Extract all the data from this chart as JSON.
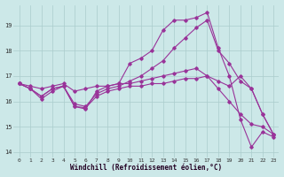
{
  "xlabel": "Windchill (Refroidissement éolien,°C)",
  "background_color": "#cce8e8",
  "grid_color": "#aacccc",
  "line_color": "#993399",
  "xlim": [
    -0.5,
    23.5
  ],
  "ylim": [
    13.8,
    19.8
  ],
  "xticks": [
    0,
    1,
    2,
    3,
    4,
    5,
    6,
    7,
    8,
    9,
    10,
    11,
    12,
    13,
    14,
    15,
    16,
    17,
    18,
    19,
    20,
    21,
    22,
    23
  ],
  "yticks": [
    14,
    15,
    16,
    17,
    18,
    19
  ],
  "line1_x": [
    0,
    1,
    2,
    3,
    4,
    5,
    6,
    7,
    8,
    9,
    10,
    11,
    12,
    13,
    14,
    15,
    16,
    17,
    18,
    19,
    20,
    21,
    22,
    23
  ],
  "line1_y": [
    16.7,
    16.5,
    16.2,
    16.5,
    16.6,
    15.8,
    15.7,
    16.4,
    16.6,
    16.7,
    17.5,
    17.7,
    18.0,
    18.8,
    19.2,
    19.2,
    19.3,
    19.5,
    18.1,
    17.0,
    15.3,
    14.2,
    14.8,
    14.6
  ],
  "line2_x": [
    0,
    1,
    2,
    3,
    4,
    5,
    6,
    7,
    8,
    9,
    10,
    11,
    12,
    13,
    14,
    15,
    16,
    17,
    18,
    19,
    20,
    21,
    22,
    23
  ],
  "line2_y": [
    16.7,
    16.5,
    16.2,
    16.5,
    16.6,
    15.9,
    15.8,
    16.3,
    16.5,
    16.6,
    16.8,
    17.0,
    17.3,
    17.6,
    18.1,
    18.5,
    18.9,
    19.2,
    18.0,
    17.5,
    16.8,
    16.5,
    15.5,
    14.7
  ],
  "line3_x": [
    0,
    1,
    2,
    3,
    4,
    5,
    6,
    7,
    8,
    9,
    10,
    11,
    12,
    13,
    14,
    15,
    16,
    17,
    18,
    19,
    20,
    21,
    22,
    23
  ],
  "line3_y": [
    16.7,
    16.6,
    16.5,
    16.6,
    16.7,
    16.4,
    16.5,
    16.6,
    16.6,
    16.7,
    16.7,
    16.8,
    16.9,
    17.0,
    17.1,
    17.2,
    17.3,
    17.0,
    16.8,
    16.6,
    17.0,
    16.5,
    15.5,
    14.7
  ],
  "line4_x": [
    0,
    1,
    2,
    3,
    4,
    5,
    6,
    7,
    8,
    9,
    10,
    11,
    12,
    13,
    14,
    15,
    16,
    17,
    18,
    19,
    20,
    21,
    22,
    23
  ],
  "line4_y": [
    16.7,
    16.5,
    16.1,
    16.4,
    16.6,
    15.8,
    15.75,
    16.2,
    16.4,
    16.5,
    16.6,
    16.6,
    16.7,
    16.7,
    16.8,
    16.9,
    16.9,
    17.0,
    16.5,
    16.0,
    15.5,
    15.1,
    15.0,
    14.7
  ]
}
